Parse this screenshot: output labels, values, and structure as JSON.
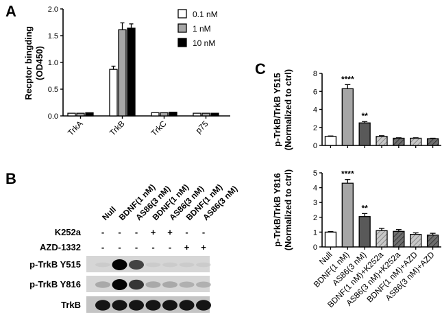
{
  "panels": {
    "a": "A",
    "b": "B",
    "c": "C"
  },
  "chart_data": [
    {
      "type": "bar",
      "panel": "A",
      "categories": [
        "TrkA",
        "TrkB",
        "TrkC",
        "p75"
      ],
      "ylabel_line1": "Recptor bingding",
      "ylabel_line2": "(OD450)",
      "ylim": [
        0,
        2.0
      ],
      "yticks": [
        "0.0",
        "0.5",
        "1.0",
        "1.5",
        "2.0"
      ],
      "legend_position": "top-right",
      "series": [
        {
          "name": "0.1 nM",
          "color": "#ffffff",
          "values": [
            0.05,
            0.87,
            0.06,
            0.05
          ],
          "errors": [
            0.01,
            0.06,
            0.01,
            0.01
          ]
        },
        {
          "name": "1 nM",
          "color": "#a6a6a6",
          "values": [
            0.05,
            1.61,
            0.06,
            0.05
          ],
          "errors": [
            0.01,
            0.13,
            0.01,
            0.01
          ]
        },
        {
          "name": "10 nM",
          "color": "#000000",
          "values": [
            0.06,
            1.64,
            0.07,
            0.05
          ],
          "errors": [
            0.01,
            0.08,
            0.01,
            0.01
          ]
        }
      ]
    },
    {
      "type": "bar",
      "panel": "C-top",
      "ylabel_line1": "p-TrkB/TrkB Y515",
      "ylabel_line2": "(Normalized to ctrl)",
      "ylim": [
        0,
        8
      ],
      "yticks": [
        "0",
        "2",
        "4",
        "6",
        "8"
      ],
      "categories": [
        "Null",
        "BDNF(1 nM)",
        "AS86(3 nM)",
        "BDNF(1 nM)+K252a",
        "AS86(3 nM)+K252a",
        "BDNF(1 nM)+AZD",
        "AS86(3 nM)+AZD"
      ],
      "values": [
        1.0,
        6.3,
        2.5,
        1.0,
        0.8,
        0.8,
        0.75
      ],
      "errors": [
        0.05,
        0.45,
        0.15,
        0.08,
        0.05,
        0.05,
        0.05
      ],
      "significance": [
        "",
        "****",
        "**",
        "",
        "",
        "",
        ""
      ]
    },
    {
      "type": "bar",
      "panel": "C-bottom",
      "ylabel_line1": "p-TrkB/TrkB Y816",
      "ylabel_line2": "(Normalized to ctrl)",
      "ylim": [
        0,
        5
      ],
      "yticks": [
        "0",
        "1",
        "2",
        "3",
        "4",
        "5"
      ],
      "categories": [
        "Null",
        "BDNF(1 nM)",
        "AS86(3 nM)",
        "BDNF(1 nM)+K252a",
        "AS86(3 nM)+K252a",
        "BDNF(1 nM)+AZD",
        "AS86(3 nM)+AZD"
      ],
      "values": [
        1.0,
        4.3,
        2.05,
        1.1,
        1.05,
        0.85,
        0.8
      ],
      "errors": [
        0.04,
        0.25,
        0.2,
        0.15,
        0.12,
        0.1,
        0.12
      ],
      "significance": [
        "",
        "****",
        "**",
        "",
        "",
        "",
        ""
      ]
    }
  ],
  "blot": {
    "lanes": [
      "Null",
      "BDNF(1 nM)",
      "AS86(3 nM)",
      "BDNF(1 nM)",
      "AS86(3 nM)",
      "BDNF(1 nM)",
      "AS86(3 nM)"
    ],
    "treatments": [
      {
        "label": "K252a",
        "signs": [
          "-",
          "-",
          "-",
          "+",
          "+",
          "-",
          "-"
        ]
      },
      {
        "label": "AZD-1332",
        "signs": [
          "-",
          "-",
          "-",
          "-",
          "-",
          "+",
          "+"
        ]
      }
    ],
    "rows": [
      {
        "label": "p-TrkB Y515",
        "intensity": [
          0.08,
          1.0,
          0.8,
          0.08,
          0.08,
          0.08,
          0.08
        ]
      },
      {
        "label": "p-TrkB Y816",
        "intensity": [
          0.35,
          1.0,
          0.85,
          0.35,
          0.35,
          0.3,
          0.3
        ]
      },
      {
        "label": "TrkB",
        "intensity": [
          0.95,
          0.95,
          0.95,
          0.95,
          0.95,
          0.95,
          0.95
        ]
      }
    ]
  }
}
